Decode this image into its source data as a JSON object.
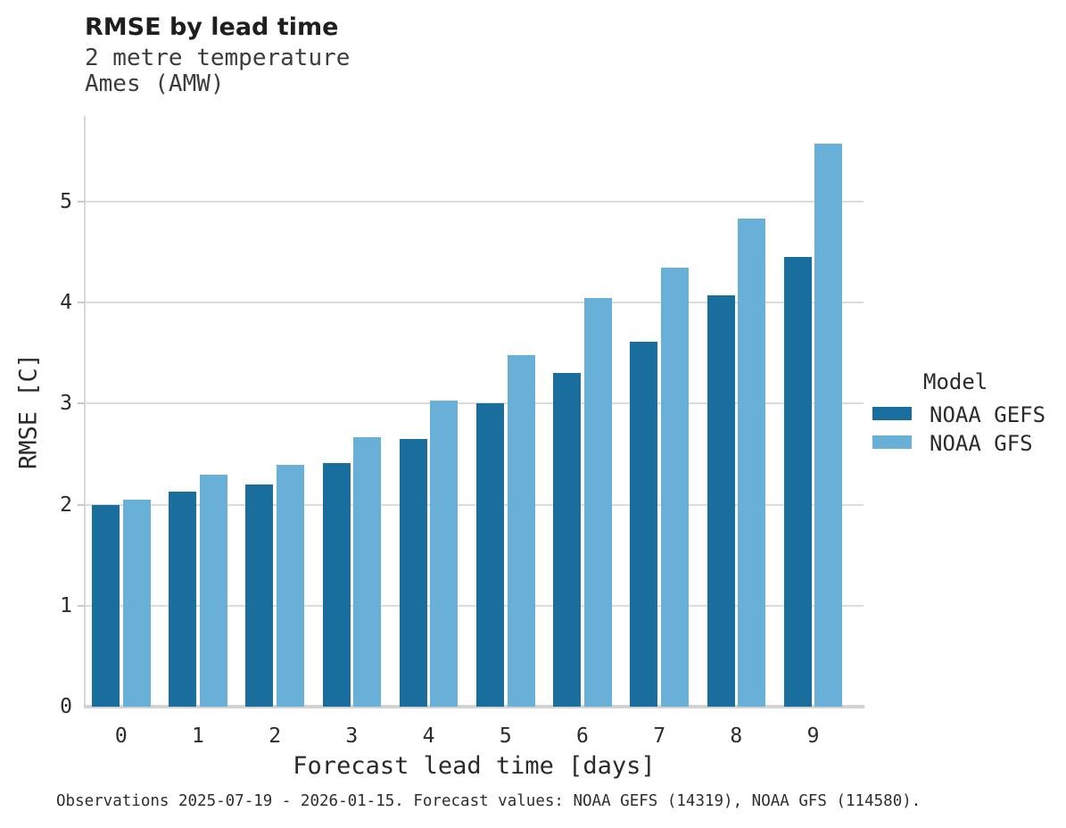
{
  "chart_data": {
    "type": "bar",
    "title": "RMSE by lead time",
    "subtitle": [
      "2 metre temperature",
      "Ames (AMW)"
    ],
    "xlabel": "Forecast lead time [days]",
    "ylabel": "RMSE [C]",
    "categories": [
      "0",
      "1",
      "2",
      "3",
      "4",
      "5",
      "6",
      "7",
      "8",
      "9"
    ],
    "series": [
      {
        "name": "NOAA GEFS",
        "color": "#1a6e9e",
        "values": [
          2.0,
          2.13,
          2.2,
          2.41,
          2.65,
          3.0,
          3.3,
          3.61,
          4.07,
          4.45
        ]
      },
      {
        "name": "NOAA GFS",
        "color": "#69b0d8",
        "values": [
          2.05,
          2.3,
          2.39,
          2.67,
          3.03,
          3.48,
          4.05,
          4.35,
          4.83,
          5.57
        ]
      }
    ],
    "ylim": [
      0,
      5.85
    ],
    "yticks": [
      0,
      1,
      2,
      3,
      4,
      5
    ],
    "grid": "horizontal",
    "legend_title": "Model",
    "legend_position": "right",
    "caption": "Observations 2025-07-19 - 2026-01-15. Forecast values: NOAA GEFS (14319), NOAA GFS (114580)."
  },
  "colors": {
    "gridline": "#dcdcdc",
    "axis_spine": "#d9d9d9",
    "baseline": "#d2d2d2",
    "text": "#262626"
  }
}
